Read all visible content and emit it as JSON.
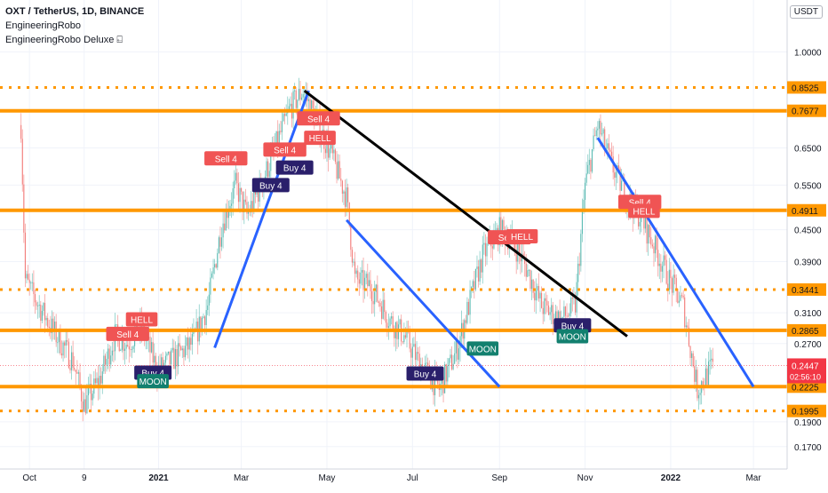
{
  "header": {
    "symbol": "OXT / TetherUS, 1D, BINANCE",
    "indicator_1": "EngineeringRobo",
    "indicator_2": "EngineeringRobo Deluxe ⍇",
    "currency_badge": "USDT"
  },
  "colors": {
    "level": "#ff9800",
    "channel": "#2962ff",
    "trend": "#000000",
    "up": "#26a69a",
    "down": "#ef5350",
    "sell_tag": "#f05454",
    "buy_tag": "#2a1f6b",
    "moon_tag": "#12806f",
    "price_badge": "#f23645"
  },
  "chart_data": {
    "type": "candlestick",
    "y_scale": "log",
    "ylim": [
      0.16,
      1.12
    ],
    "x_range": [
      "2020-09-10",
      "2022-03-25"
    ],
    "y_ticks": [
      "1.0000",
      "0.6500",
      "0.5500",
      "0.4500",
      "0.3900",
      "0.3100",
      "0.2700",
      "0.1900",
      "0.1700"
    ],
    "x_ticks": [
      {
        "date": "2020-10-01",
        "label": "Oct",
        "bold": false
      },
      {
        "date": "2020-11-09",
        "label": "9",
        "bold": false
      },
      {
        "date": "2021-01-01",
        "label": "2021",
        "bold": true
      },
      {
        "date": "2021-03-01",
        "label": "Mar",
        "bold": false
      },
      {
        "date": "2021-05-01",
        "label": "May",
        "bold": false
      },
      {
        "date": "2021-07-01",
        "label": "Jul",
        "bold": false
      },
      {
        "date": "2021-09-01",
        "label": "Sep",
        "bold": false
      },
      {
        "date": "2021-11-01",
        "label": "Nov",
        "bold": false
      },
      {
        "date": "2022-01-01",
        "label": "2022",
        "bold": true
      },
      {
        "date": "2022-03-01",
        "label": "Mar",
        "bold": false
      }
    ],
    "horizontal_levels": [
      {
        "price": 0.8525,
        "label": "0.8525",
        "style": "dotted"
      },
      {
        "price": 0.7677,
        "label": "0.7677",
        "style": "solid"
      },
      {
        "price": 0.4911,
        "label": "0.4911",
        "style": "solid"
      },
      {
        "price": 0.3441,
        "label": "0.3441",
        "style": "dotted"
      },
      {
        "price": 0.2865,
        "label": "0.2865",
        "style": "solid"
      },
      {
        "price": 0.2225,
        "label": "0.2225",
        "style": "solid"
      },
      {
        "price": 0.1995,
        "label": "0.1995",
        "style": "dotted"
      }
    ],
    "trend_lines": [
      {
        "color": "channel",
        "from": [
          "2021-02-10",
          0.265
        ],
        "to": [
          "2021-04-18",
          0.84
        ]
      },
      {
        "color": "trend",
        "from": [
          "2021-04-15",
          0.84
        ],
        "to": [
          "2021-12-01",
          0.279
        ]
      },
      {
        "color": "channel",
        "from": [
          "2021-05-15",
          0.47
        ],
        "to": [
          "2021-09-01",
          0.2225
        ]
      },
      {
        "color": "channel",
        "from": [
          "2021-11-10",
          0.68
        ],
        "to": [
          "2022-03-01",
          0.2225
        ]
      }
    ],
    "signals": [
      {
        "text": "Sell 4",
        "type": "sell",
        "date": "2020-12-10",
        "price": 0.282
      },
      {
        "text": "HELL",
        "type": "sell",
        "date": "2020-12-20",
        "price": 0.301
      },
      {
        "text": "Buy 4",
        "type": "buy",
        "date": "2020-12-28",
        "price": 0.237
      },
      {
        "text": "MOON",
        "type": "moon",
        "date": "2020-12-28",
        "price": 0.228
      },
      {
        "text": "Sell 4",
        "type": "sell",
        "date": "2021-02-18",
        "price": 0.62
      },
      {
        "text": "Buy 4",
        "type": "buy",
        "date": "2021-03-22",
        "price": 0.55
      },
      {
        "text": "Sell 4",
        "type": "sell",
        "date": "2021-04-01",
        "price": 0.645
      },
      {
        "text": "Buy 4",
        "type": "buy",
        "date": "2021-04-08",
        "price": 0.595
      },
      {
        "text": "Sell 4",
        "type": "sell",
        "date": "2021-04-25",
        "price": 0.742
      },
      {
        "text": "HELL",
        "type": "sell",
        "date": "2021-04-26",
        "price": 0.68
      },
      {
        "text": "Buy 4",
        "type": "buy",
        "date": "2021-07-10",
        "price": 0.236
      },
      {
        "text": "MOON",
        "type": "moon",
        "date": "2021-08-20",
        "price": 0.264
      },
      {
        "text": "Sell 4",
        "type": "sell",
        "date": "2021-09-08",
        "price": 0.435
      },
      {
        "text": "HELL",
        "type": "sell",
        "date": "2021-09-17",
        "price": 0.437
      },
      {
        "text": "Buy 4",
        "type": "buy",
        "date": "2021-10-23",
        "price": 0.293
      },
      {
        "text": "MOON",
        "type": "moon",
        "date": "2021-10-23",
        "price": 0.279
      },
      {
        "text": "Sell 4",
        "type": "sell",
        "date": "2021-12-10",
        "price": 0.51
      },
      {
        "text": "HELL",
        "type": "sell",
        "date": "2021-12-13",
        "price": 0.49
      }
    ],
    "last_price": {
      "price": 0.2447,
      "label": "0.2447",
      "countdown": "02:56:10"
    },
    "price_path": [
      [
        "2020-09-25",
        0.72
      ],
      [
        "2020-09-28",
        0.36
      ],
      [
        "2020-10-05",
        0.33
      ],
      [
        "2020-10-20",
        0.28
      ],
      [
        "2020-11-01",
        0.25
      ],
      [
        "2020-11-09",
        0.205
      ],
      [
        "2020-11-20",
        0.23
      ],
      [
        "2020-12-01",
        0.28
      ],
      [
        "2020-12-10",
        0.27
      ],
      [
        "2020-12-20",
        0.29
      ],
      [
        "2020-12-31",
        0.24
      ],
      [
        "2021-01-10",
        0.25
      ],
      [
        "2021-01-25",
        0.27
      ],
      [
        "2021-02-05",
        0.32
      ],
      [
        "2021-02-15",
        0.46
      ],
      [
        "2021-02-25",
        0.55
      ],
      [
        "2021-03-05",
        0.48
      ],
      [
        "2021-03-15",
        0.55
      ],
      [
        "2021-03-25",
        0.65
      ],
      [
        "2021-04-05",
        0.78
      ],
      [
        "2021-04-14",
        0.84
      ],
      [
        "2021-04-25",
        0.72
      ],
      [
        "2021-05-05",
        0.62
      ],
      [
        "2021-05-15",
        0.52
      ],
      [
        "2021-05-21",
        0.36
      ],
      [
        "2021-06-01",
        0.35
      ],
      [
        "2021-06-15",
        0.3
      ],
      [
        "2021-06-25",
        0.28
      ],
      [
        "2021-07-05",
        0.25
      ],
      [
        "2021-07-20",
        0.22
      ],
      [
        "2021-08-01",
        0.26
      ],
      [
        "2021-08-10",
        0.32
      ],
      [
        "2021-08-20",
        0.4
      ],
      [
        "2021-09-01",
        0.45
      ],
      [
        "2021-09-10",
        0.43
      ],
      [
        "2021-09-20",
        0.38
      ],
      [
        "2021-10-01",
        0.32
      ],
      [
        "2021-10-15",
        0.3
      ],
      [
        "2021-10-25",
        0.32
      ],
      [
        "2021-11-01",
        0.55
      ],
      [
        "2021-11-10",
        0.72
      ],
      [
        "2021-11-20",
        0.6
      ],
      [
        "2021-12-01",
        0.52
      ],
      [
        "2021-12-10",
        0.48
      ],
      [
        "2021-12-20",
        0.42
      ],
      [
        "2021-12-31",
        0.36
      ],
      [
        "2022-01-10",
        0.32
      ],
      [
        "2022-01-20",
        0.22
      ],
      [
        "2022-01-31",
        0.2447
      ]
    ]
  }
}
